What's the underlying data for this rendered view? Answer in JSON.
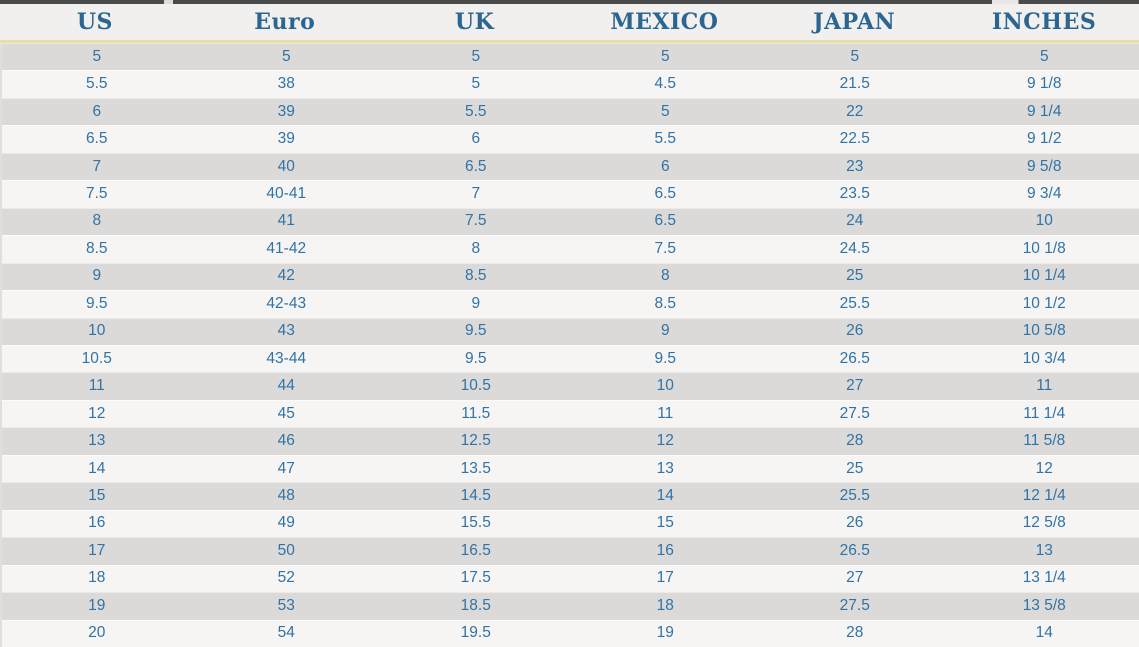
{
  "chart_data": {
    "type": "table",
    "title": "",
    "columns": [
      "US",
      "Euro",
      "UK",
      "MEXICO",
      "JAPAN",
      "INCHES"
    ],
    "rows": [
      [
        "5",
        "5",
        "5",
        "5",
        "5",
        "5"
      ],
      [
        "5.5",
        "38",
        "5",
        "4.5",
        "21.5",
        "9 1/8"
      ],
      [
        "6",
        "39",
        "5.5",
        "5",
        "22",
        "9 1/4"
      ],
      [
        "6.5",
        "39",
        "6",
        "5.5",
        "22.5",
        "9 1/2"
      ],
      [
        "7",
        "40",
        "6.5",
        "6",
        "23",
        "9 5/8"
      ],
      [
        "7.5",
        "40-41",
        "7",
        "6.5",
        "23.5",
        "9 3/4"
      ],
      [
        "8",
        "41",
        "7.5",
        "6.5",
        "24",
        "10"
      ],
      [
        "8.5",
        "41-42",
        "8",
        "7.5",
        "24.5",
        "10 1/8"
      ],
      [
        "9",
        "42",
        "8.5",
        "8",
        "25",
        "10 1/4"
      ],
      [
        "9.5",
        "42-43",
        "9",
        "8.5",
        "25.5",
        "10 1/2"
      ],
      [
        "10",
        "43",
        "9.5",
        "9",
        "26",
        "10 5/8"
      ],
      [
        "10.5",
        "43-44",
        "9.5",
        "9.5",
        "26.5",
        "10 3/4"
      ],
      [
        "11",
        "44",
        "10.5",
        "10",
        "27",
        "11"
      ],
      [
        "12",
        "45",
        "11.5",
        "11",
        "27.5",
        "11 1/4"
      ],
      [
        "13",
        "46",
        "12.5",
        "12",
        "28",
        "11 5/8"
      ],
      [
        "14",
        "47",
        "13.5",
        "13",
        "25",
        "12"
      ],
      [
        "15",
        "48",
        "14.5",
        "14",
        "25.5",
        "12 1/4"
      ],
      [
        "16",
        "49",
        "15.5",
        "15",
        "26",
        "12 5/8"
      ],
      [
        "17",
        "50",
        "16.5",
        "16",
        "26.5",
        "13"
      ],
      [
        "18",
        "52",
        "17.5",
        "17",
        "27",
        "13 1/4"
      ],
      [
        "19",
        "53",
        "18.5",
        "18",
        "27.5",
        "13 5/8"
      ],
      [
        "20",
        "54",
        "19.5",
        "19",
        "28",
        "14"
      ]
    ],
    "layout": {
      "striped": true,
      "stripe_start": "dark",
      "text_align": "center"
    }
  },
  "colors": {
    "header_text": "#2a6691",
    "cell_text": "#2f73a7",
    "header_bg": "#f1f0ee",
    "row_dark": "#dbdad8",
    "row_light": "#f6f5f3",
    "accent_line": "#e5dfa8",
    "top_border": "#4a4a4a"
  }
}
